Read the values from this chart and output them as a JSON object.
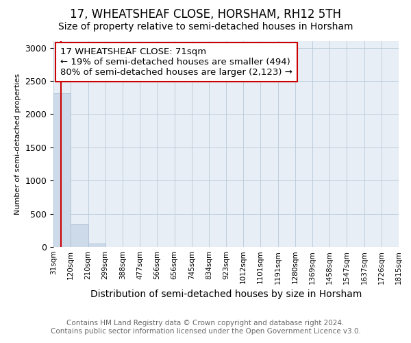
{
  "title": "17, WHEATSHEAF CLOSE, HORSHAM, RH12 5TH",
  "subtitle": "Size of property relative to semi-detached houses in Horsham",
  "xlabel": "Distribution of semi-detached houses by size in Horsham",
  "ylabel": "Number of semi-detached properties",
  "bin_labels": [
    "31sqm",
    "120sqm",
    "210sqm",
    "299sqm",
    "388sqm",
    "477sqm",
    "566sqm",
    "656sqm",
    "745sqm",
    "834sqm",
    "923sqm",
    "1012sqm",
    "1101sqm",
    "1191sqm",
    "1280sqm",
    "1369sqm",
    "1458sqm",
    "1547sqm",
    "1637sqm",
    "1726sqm",
    "1815sqm"
  ],
  "bar_values": [
    2310,
    345,
    48,
    0,
    0,
    0,
    0,
    0,
    0,
    0,
    0,
    0,
    0,
    0,
    0,
    0,
    0,
    0,
    0,
    0
  ],
  "bar_color": "#cddaea",
  "bar_edge_color": "#b0c4d8",
  "ylim": [
    0,
    3100
  ],
  "yticks": [
    0,
    500,
    1000,
    1500,
    2000,
    2500,
    3000
  ],
  "property_size": 71,
  "bin_edges": [
    31,
    120,
    210,
    299,
    388,
    477,
    566,
    656,
    745,
    834,
    923,
    1012,
    1101,
    1191,
    1280,
    1369,
    1458,
    1547,
    1637,
    1726,
    1815
  ],
  "red_line_color": "#cc0000",
  "annotation_line1": "17 WHEATSHEAF CLOSE: 71sqm",
  "annotation_line2": "← 19% of semi-detached houses are smaller (494)",
  "annotation_line3": "80% of semi-detached houses are larger (2,123) →",
  "annotation_box_color": "#ffffff",
  "annotation_border_color": "#cc0000",
  "footer_line1": "Contains HM Land Registry data © Crown copyright and database right 2024.",
  "footer_line2": "Contains public sector information licensed under the Open Government Licence v3.0.",
  "title_fontsize": 12,
  "subtitle_fontsize": 10,
  "annotation_fontsize": 9.5,
  "ylabel_fontsize": 8,
  "xlabel_fontsize": 10,
  "footer_fontsize": 7.5,
  "bg_color": "#e8eef5",
  "grid_color": "#b8cad8"
}
